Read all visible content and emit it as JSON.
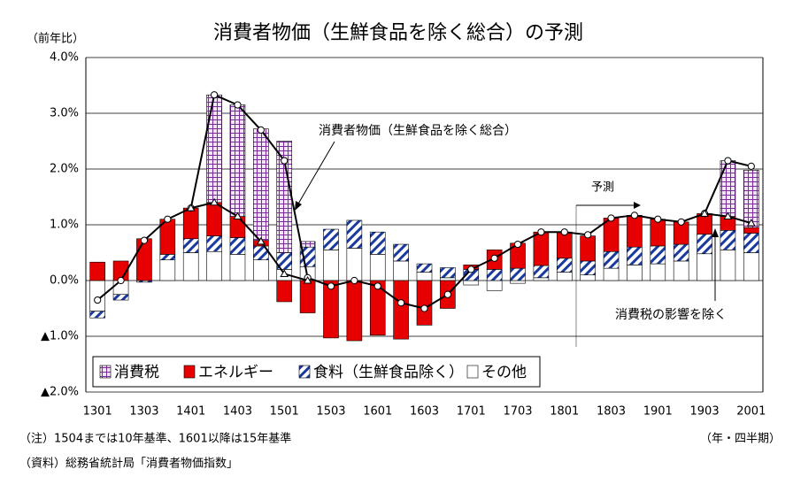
{
  "chart_data": {
    "type": "stacked-bar-line",
    "title": "消費者物価（生鮮食品を除く総合）の予測",
    "y_label": "（前年比）",
    "x_label": "（年・四半期）",
    "annotations": [
      "予測"
    ],
    "notes": [
      "（注）1504までは10年基準、1601以降は15年基準",
      "（資料）総務省統計局「消費者物価指数」"
    ],
    "categories": [
      "1301",
      null,
      "1303",
      null,
      "1401",
      null,
      "1403",
      null,
      "1501",
      null,
      "1503",
      null,
      "1601",
      null,
      "1603",
      null,
      "1701",
      null,
      "1703",
      null,
      "1801",
      null,
      "1803",
      null,
      "1901",
      null,
      "1903",
      null,
      "2001"
    ],
    "ylim": [
      -2,
      4
    ],
    "yticks": [
      {
        "value": 4,
        "label": "4.0%"
      },
      {
        "value": 3,
        "label": "3.0%"
      },
      {
        "value": 2,
        "label": "2.0%"
      },
      {
        "value": 1,
        "label": "1.0%"
      },
      {
        "value": 0,
        "label": "0.0%"
      },
      {
        "value": -1,
        "label": "▲1.0%"
      },
      {
        "value": -2,
        "label": "▲2.0%"
      }
    ],
    "grid": true,
    "legend": "bottom-left",
    "series": [
      {
        "name": "消費税",
        "color": "#7a2a9a",
        "pattern": "grid",
        "values": [
          0,
          0,
          0,
          0,
          0,
          1.93,
          2.0,
          2.0,
          2.0,
          0.1,
          0,
          0,
          0,
          0,
          0,
          0,
          0,
          0,
          0,
          0,
          0,
          0,
          0,
          0,
          0,
          0,
          0,
          1.0,
          1.03
        ]
      },
      {
        "name": "エネルギー",
        "color": "#e60000",
        "pattern": "solid",
        "values": [
          0.33,
          0.35,
          0.75,
          0.63,
          0.55,
          0.6,
          0.38,
          0.1,
          -0.38,
          -0.58,
          -1.03,
          -1.08,
          -0.98,
          -1.05,
          -0.8,
          -0.5,
          0.08,
          0.35,
          0.45,
          0.6,
          0.47,
          0.45,
          0.6,
          0.57,
          0.48,
          0.4,
          0.37,
          0.25,
          0.1
        ]
      },
      {
        "name": "食料（生鮮食品除く）",
        "color": "#1a3aa0",
        "pattern": "diagonal",
        "values": [
          -0.12,
          -0.1,
          -0.03,
          0.1,
          0.25,
          0.28,
          0.3,
          0.25,
          0.3,
          0.35,
          0.37,
          0.5,
          0.4,
          0.3,
          0.15,
          0.18,
          0.2,
          0.2,
          0.22,
          0.22,
          0.25,
          0.25,
          0.3,
          0.32,
          0.32,
          0.3,
          0.35,
          0.35,
          0.35
        ]
      },
      {
        "name": "その他",
        "color": "#ffffff",
        "pattern": "solid",
        "values": [
          -0.55,
          -0.25,
          0,
          0.37,
          0.5,
          0.52,
          0.47,
          0.37,
          0.2,
          0.25,
          0.55,
          0.58,
          0.47,
          0.35,
          0.15,
          0.05,
          -0.08,
          -0.18,
          -0.05,
          0.05,
          0.15,
          0.1,
          0.22,
          0.28,
          0.3,
          0.35,
          0.48,
          0.55,
          0.5
        ]
      }
    ],
    "lines": [
      {
        "name": "消費者物価（生鮮食品を除く総合）",
        "marker": "circle",
        "color": "#000000",
        "values": [
          -0.35,
          0.0,
          0.72,
          1.1,
          1.3,
          3.33,
          3.15,
          2.7,
          2.15,
          0.05,
          -0.1,
          0.0,
          -0.1,
          -0.4,
          -0.5,
          -0.25,
          0.2,
          0.4,
          0.65,
          0.87,
          0.87,
          0.82,
          1.12,
          1.17,
          1.1,
          1.05,
          1.2,
          2.15,
          2.05
        ]
      },
      {
        "name": "消費税の影響を除く",
        "marker": "triangle",
        "color": "#000000",
        "values": [
          null,
          null,
          null,
          null,
          1.3,
          1.4,
          1.15,
          0.7,
          0.12,
          0.0,
          null,
          null,
          null,
          null,
          null,
          null,
          null,
          null,
          null,
          null,
          null,
          null,
          null,
          null,
          null,
          null,
          1.2,
          1.15,
          1.03
        ]
      }
    ]
  }
}
